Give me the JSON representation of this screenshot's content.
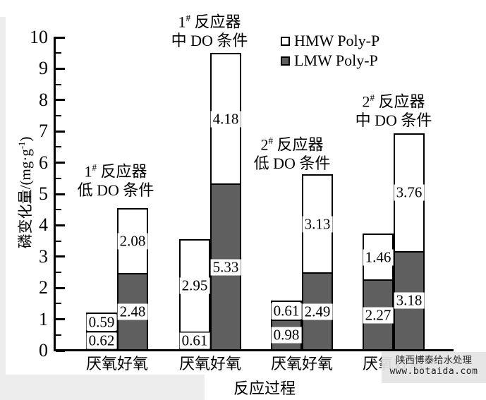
{
  "watermark": {
    "line1": "陕西博泰给水处理",
    "line2": "www.botaida.com"
  },
  "chart_data": {
    "type": "bar",
    "stacked": true,
    "title": "",
    "xlabel": "反应过程",
    "ylabel": {
      "pre": "磷变化量/(mg·g",
      "sup": "-1",
      "post": ")"
    },
    "ylim": [
      0,
      10
    ],
    "ytick_major_step": 1,
    "ytick_minor_step": 0.5,
    "grid": false,
    "legend_position": "inside-top",
    "series": [
      {
        "name": "HMW Poly-P",
        "key": "HMW",
        "color": "#ffffff"
      },
      {
        "name": "LMW Poly-P",
        "key": "LMW",
        "color": "#5f5f5f"
      }
    ],
    "groups": [
      {
        "annotation": {
          "reactor_num": "1",
          "sup": "#",
          "reactor_word": "反应器",
          "condition": "低 DO 条件"
        },
        "bars": [
          {
            "category": "厌氧",
            "LMW": 0.62,
            "HMW": 0.59
          },
          {
            "category": "好氧",
            "LMW": 2.48,
            "HMW": 2.08
          }
        ]
      },
      {
        "annotation": {
          "reactor_num": "1",
          "sup": "#",
          "reactor_word": "反应器",
          "condition": "中 DO 条件"
        },
        "bars": [
          {
            "category": "厌氧",
            "LMW": 0.61,
            "HMW": 2.95
          },
          {
            "category": "好氧",
            "LMW": 5.33,
            "HMW": 4.18
          }
        ]
      },
      {
        "annotation": {
          "reactor_num": "2",
          "sup": "#",
          "reactor_word": "反应器",
          "condition": "低 DO 条件"
        },
        "bars": [
          {
            "category": "厌氧",
            "LMW": 0.98,
            "HMW": 0.61
          },
          {
            "category": "好氧",
            "LMW": 2.49,
            "HMW": 3.13
          }
        ]
      },
      {
        "annotation": {
          "reactor_num": "2",
          "sup": "#",
          "reactor_word": "反应器",
          "condition": "中 DO 条件"
        },
        "bars": [
          {
            "category": "厌氧",
            "LMW": 2.27,
            "HMW": 1.46
          },
          {
            "category": "好氧",
            "LMW": 3.18,
            "HMW": 3.76
          }
        ]
      }
    ]
  }
}
